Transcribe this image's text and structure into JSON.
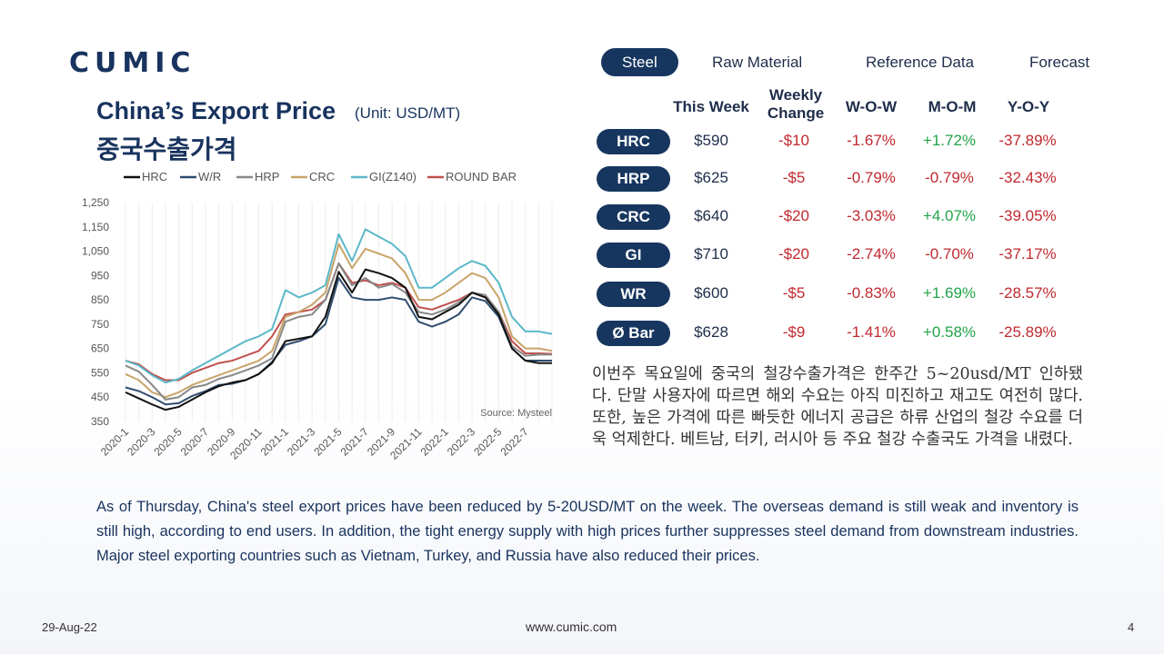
{
  "logo": "CUMIC",
  "tabs": [
    {
      "label": "Steel",
      "active": true
    },
    {
      "label": "Raw Material",
      "active": false
    },
    {
      "label": "Reference Data",
      "active": false
    },
    {
      "label": "Forecast",
      "active": false
    }
  ],
  "chart_title": "China’s Export Price",
  "chart_unit": "(Unit: USD/MT)",
  "chart_subtitle": "중국수출가격",
  "table": {
    "headers": [
      "This Week",
      "Weekly Change",
      "W-O-W",
      "M-O-M",
      "Y-O-Y"
    ],
    "rows": [
      {
        "product": "HRC",
        "price": "$590",
        "change": "-$10",
        "wow": "-1.67%",
        "mom": "+1.72%",
        "yoy": "-37.89%"
      },
      {
        "product": "HRP",
        "price": "$625",
        "change": "-$5",
        "wow": "-0.79%",
        "mom": "-0.79%",
        "yoy": "-32.43%"
      },
      {
        "product": "CRC",
        "price": "$640",
        "change": "-$20",
        "wow": "-3.03%",
        "mom": "+4.07%",
        "yoy": "-39.05%"
      },
      {
        "product": "GI",
        "price": "$710",
        "change": "-$20",
        "wow": "-2.74%",
        "mom": "-0.70%",
        "yoy": "-37.17%"
      },
      {
        "product": "WR",
        "price": "$600",
        "change": "-$5",
        "wow": "-0.83%",
        "mom": "+1.69%",
        "yoy": "-28.57%"
      },
      {
        "product": "Ø Bar",
        "price": "$628",
        "change": "-$9",
        "wow": "-1.41%",
        "mom": "+0.58%",
        "yoy": "-25.89%"
      }
    ]
  },
  "korean_text": "이번주 목요일에 중국의 철강수출가격은 한주간 5~20usd/MT 인하됐다. 단말 사용자에 따르면 해외 수요는 아직 미진하고 재고도 여전히 많다. 또한, 높은 가격에 따른 빠듯한 에너지 공급은 하류 산업의 철강 수요를 더욱 억제한다. 베트남, 터키, 러시아 등 주요 철강 수출국도 가격을 내렸다.",
  "english_text": "As of Thursday, China's steel export prices have been reduced by 5-20USD/MT on the week. The overseas demand is still weak and inventory is still high, according to end users. In addition, the tight energy supply with high prices further suppresses steel demand from downstream industries. Major steel exporting countries such as Vietnam, Turkey, and Russia have also reduced their prices.",
  "footer": {
    "date": "29-Aug-22",
    "url": "www.cumic.com",
    "page": "4"
  },
  "colors": {
    "navy": "#17365f",
    "negative": "#c0292f",
    "positive": "#22a34a"
  },
  "chart_data": {
    "type": "line",
    "source_note": "Source: Mysteel",
    "ylim": [
      350,
      1250
    ],
    "yticks": [
      "1,250",
      "1,150",
      "1,050",
      "950",
      "850",
      "750",
      "650",
      "550",
      "450",
      "350"
    ],
    "x_tick_labels": [
      "2020-1",
      "2020-3",
      "2020-5",
      "2020-7",
      "2020-9",
      "2020-11",
      "2021-1",
      "2021-3",
      "2021-5",
      "2021-7",
      "2021-9",
      "2021-11",
      "2022-1",
      "2022-3",
      "2022-5",
      "2022-7"
    ],
    "x_tick_positions": [
      0,
      2,
      4,
      6,
      8,
      10,
      12,
      14,
      16,
      18,
      20,
      22,
      24,
      26,
      28,
      30
    ],
    "x": [
      0,
      1,
      2,
      3,
      4,
      5,
      6,
      7,
      8,
      9,
      10,
      11,
      12,
      13,
      14,
      15,
      16,
      17,
      18,
      19,
      20,
      21,
      22,
      23,
      24,
      25,
      26,
      27,
      28,
      29,
      30,
      31,
      32
    ],
    "series": [
      {
        "name": "HRC",
        "color": "#111111",
        "values": [
          470,
          445,
          420,
          398,
          410,
          440,
          470,
          495,
          510,
          520,
          545,
          590,
          680,
          690,
          700,
          780,
          965,
          880,
          975,
          960,
          940,
          900,
          780,
          770,
          800,
          830,
          880,
          860,
          790,
          650,
          600,
          590,
          590
        ]
      },
      {
        "name": "W/R",
        "color": "#2f4d6e",
        "values": [
          490,
          475,
          450,
          420,
          425,
          455,
          475,
          500,
          505,
          520,
          545,
          595,
          665,
          680,
          700,
          750,
          940,
          860,
          850,
          850,
          860,
          850,
          760,
          740,
          760,
          790,
          860,
          845,
          780,
          650,
          600,
          600,
          600
        ]
      },
      {
        "name": "HRP",
        "color": "#888888",
        "values": [
          580,
          555,
          500,
          440,
          450,
          490,
          500,
          525,
          540,
          560,
          580,
          610,
          760,
          780,
          790,
          850,
          1000,
          910,
          940,
          900,
          915,
          880,
          800,
          790,
          810,
          840,
          880,
          870,
          800,
          660,
          620,
          625,
          625
        ]
      },
      {
        "name": "CRC",
        "color": "#c9a46a",
        "values": [
          545,
          520,
          470,
          450,
          470,
          500,
          520,
          540,
          560,
          580,
          600,
          640,
          780,
          800,
          830,
          880,
          1080,
          980,
          1060,
          1040,
          1020,
          960,
          850,
          850,
          880,
          920,
          960,
          940,
          860,
          700,
          650,
          650,
          640
        ]
      },
      {
        "name": "GI(Z140)",
        "color": "#5bb7c9",
        "values": [
          600,
          580,
          540,
          510,
          525,
          560,
          590,
          620,
          650,
          680,
          700,
          730,
          890,
          860,
          880,
          910,
          1120,
          1010,
          1140,
          1110,
          1080,
          1030,
          900,
          900,
          940,
          980,
          1010,
          990,
          920,
          780,
          720,
          720,
          710
        ]
      },
      {
        "name": "ROUND BAR",
        "color": "#c0504d",
        "values": [
          600,
          585,
          545,
          520,
          520,
          550,
          570,
          590,
          600,
          620,
          640,
          700,
          790,
          800,
          810,
          850,
          1000,
          920,
          930,
          910,
          920,
          900,
          820,
          810,
          830,
          850,
          880,
          860,
          800,
          680,
          630,
          630,
          628
        ]
      }
    ]
  }
}
